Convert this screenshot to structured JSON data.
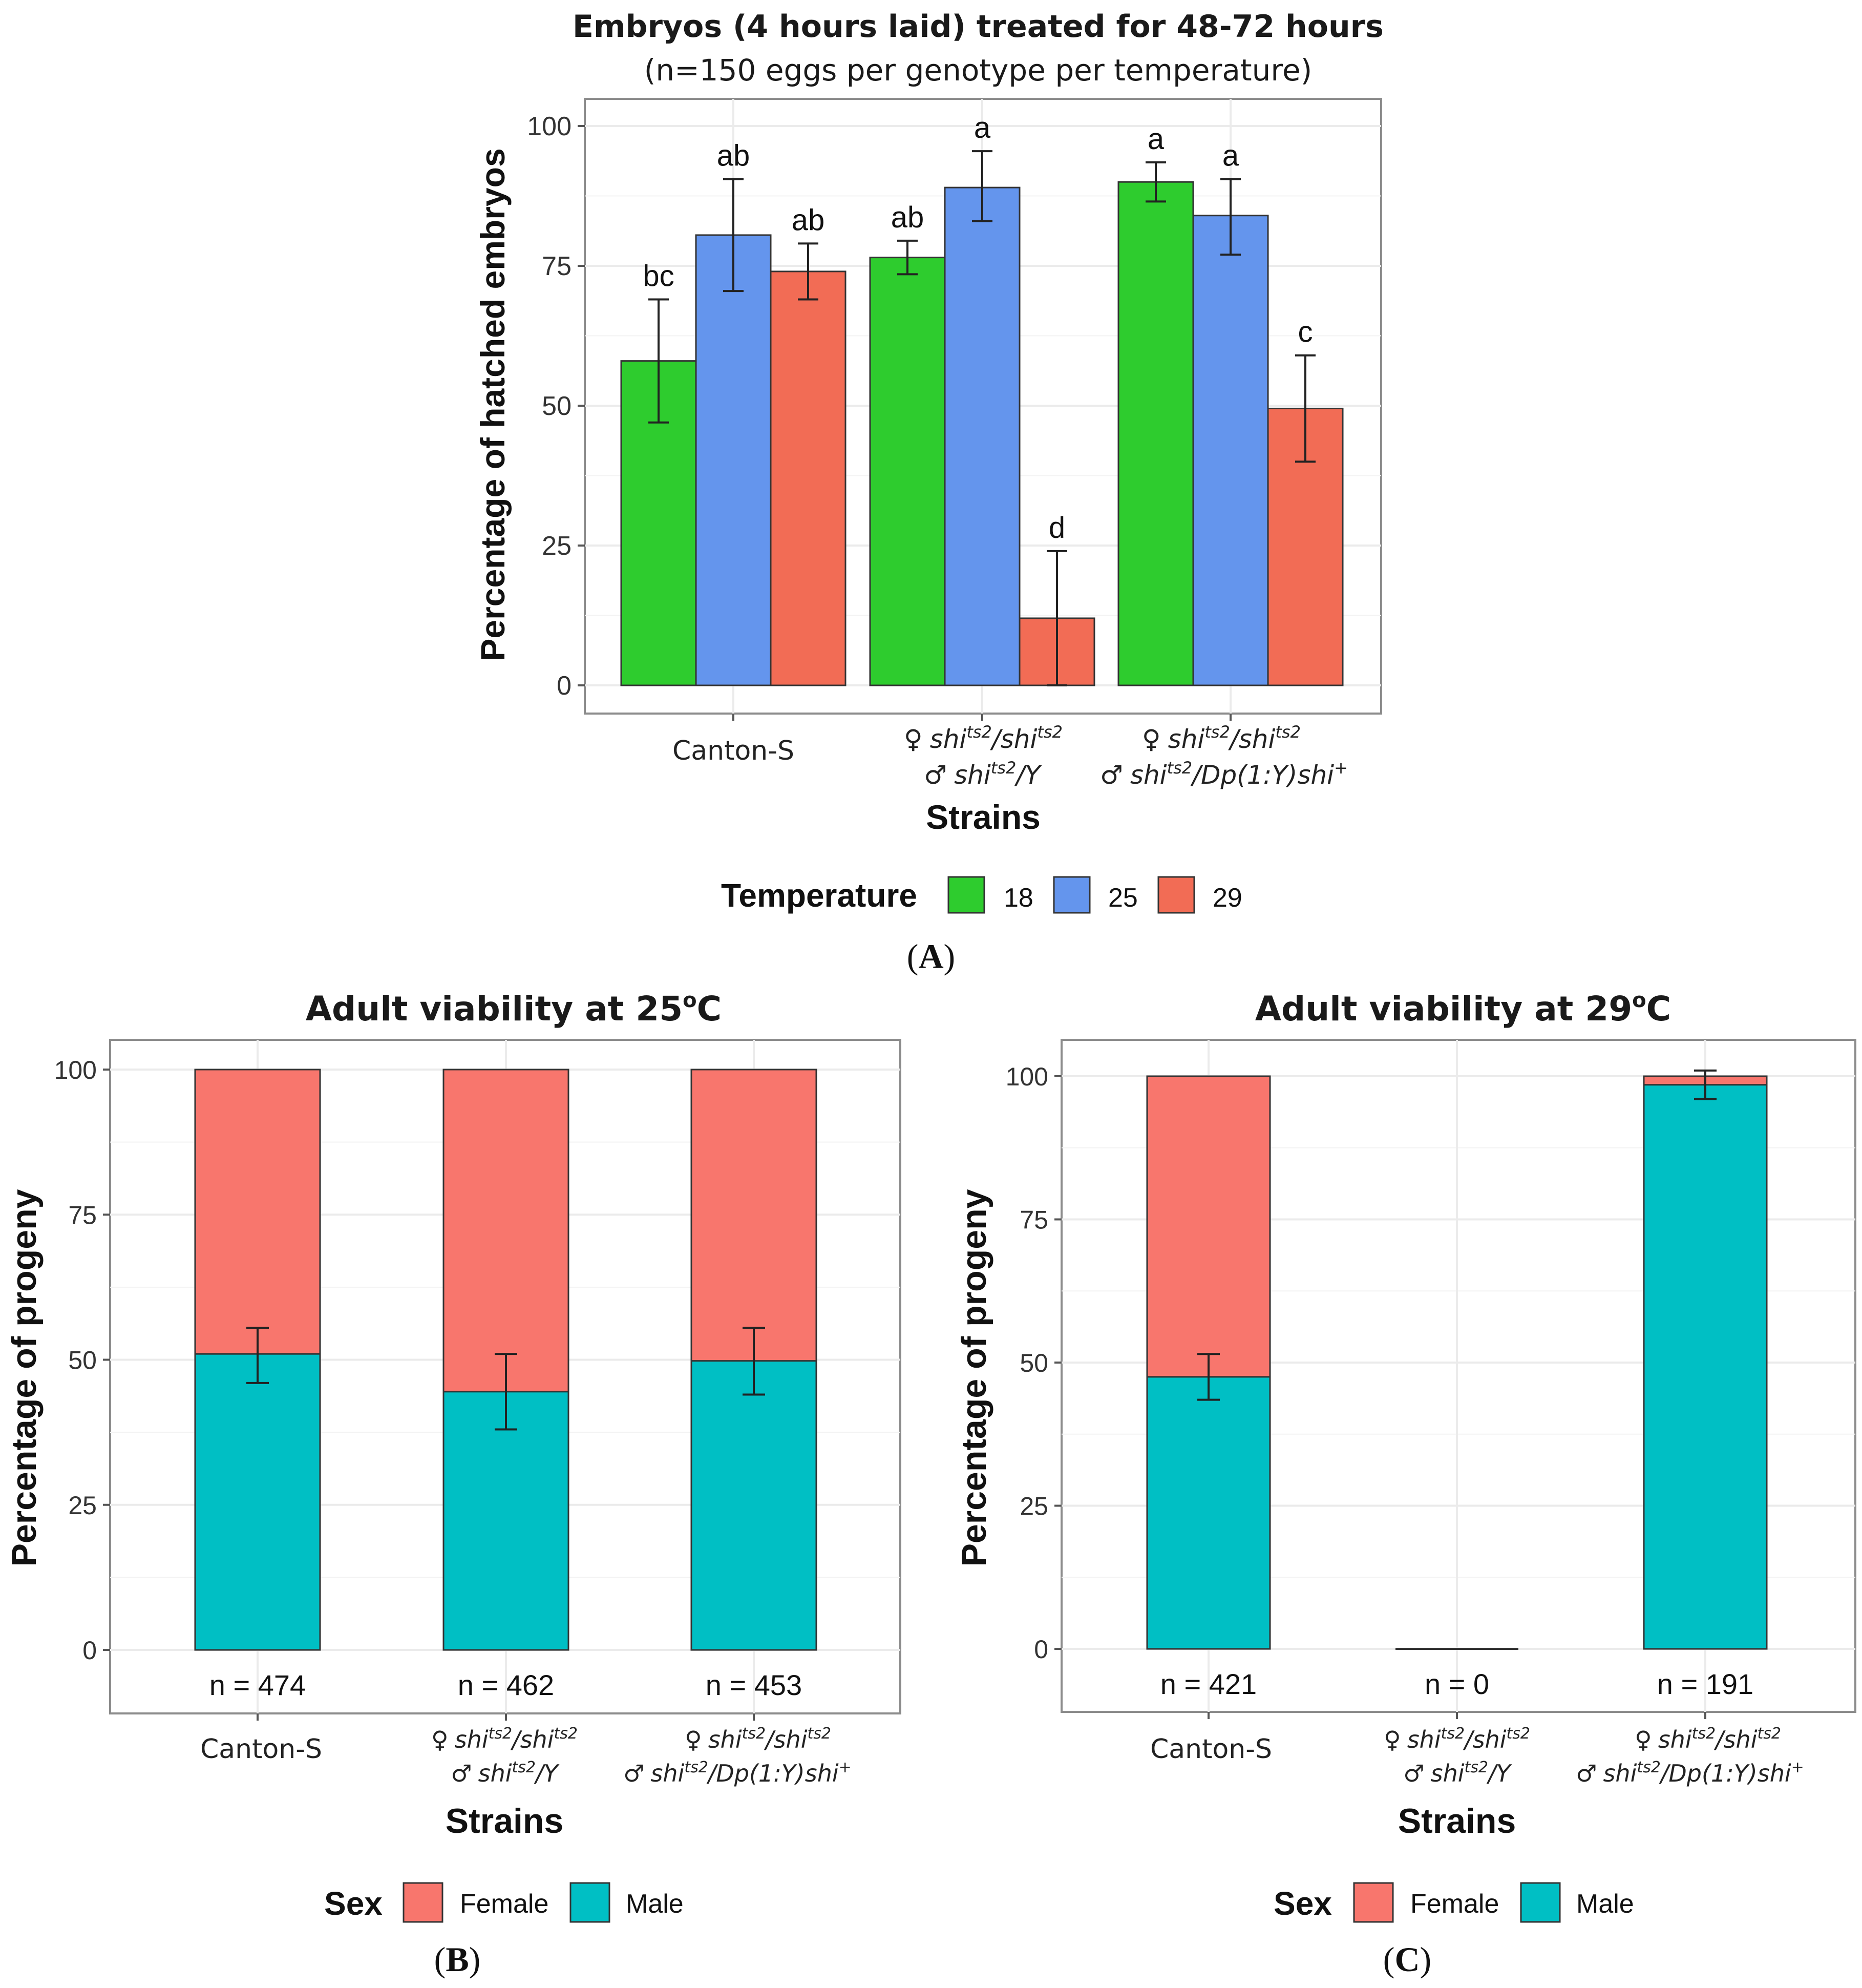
{
  "strains_label": "Strains",
  "genotypes": {
    "canton": "Canton-S",
    "female_symbol": "♀",
    "male_symbol": "♂",
    "female_genotype": "shi<sup>ts2</sup>/shi<sup>ts2</sup>",
    "female_genotype_text": "shits2/shits2",
    "male_genotype_b": "shits2/Y",
    "male_genotype_c": "shits2/Dp(1:Y)shi+"
  },
  "chart_data": [
    {
      "id": "A",
      "type": "bar",
      "panel_label": "A",
      "title": "Embryos (4 hours laid) treated for 48-72 hours",
      "subtitle": "(n=150 eggs per genotype per temperature)",
      "xlabel": "Strains",
      "ylabel": "Percentage of hatched embryos",
      "ylim": [
        0,
        105
      ],
      "yticks": [
        "0",
        "25",
        "50",
        "75",
        "100"
      ],
      "categories": [
        "Canton-S",
        "shits2/shits2 ; shits2/Y",
        "shits2/shits2 ; shits2/Dp(1:Y)shi+"
      ],
      "legend_title": "Temperature",
      "series": [
        {
          "name": "18",
          "color": "#2ecc2e",
          "values": [
            58,
            76.5,
            90
          ],
          "err_low": [
            47,
            73.5,
            86.5
          ],
          "err_high": [
            69,
            79.5,
            93.5
          ],
          "labels": [
            "bc",
            "ab",
            "a"
          ]
        },
        {
          "name": "25",
          "color": "#6495ed",
          "values": [
            80.5,
            89,
            84
          ],
          "err_low": [
            70.5,
            83,
            77
          ],
          "err_high": [
            90.5,
            95.5,
            90.5
          ],
          "labels": [
            "ab",
            "a",
            "a"
          ]
        },
        {
          "name": "29",
          "color": "#f26c55",
          "values": [
            74,
            12,
            49.5
          ],
          "err_low": [
            69,
            0,
            40
          ],
          "err_high": [
            79,
            24,
            59
          ],
          "labels": [
            "ab",
            "d",
            "c"
          ]
        }
      ]
    },
    {
      "id": "B",
      "type": "bar",
      "stacked": true,
      "panel_label": "B",
      "title": "Adult viability at 25",
      "title_suffix": "C",
      "degree": "o",
      "xlabel": "Strains",
      "ylabel": "Percentage of progeny",
      "ylim": [
        -10,
        105
      ],
      "yticks": [
        "0",
        "25",
        "50",
        "75",
        "100"
      ],
      "categories": [
        "Canton-S",
        "shits2/shits2 ; shits2/Y",
        "shits2/shits2 ; shits2/Dp(1:Y)shi+"
      ],
      "n_labels": [
        "n = 474",
        "n = 462",
        "n = 453"
      ],
      "legend_title": "Sex",
      "series": [
        {
          "name": "Male",
          "color": "#00bfc4",
          "values": [
            51,
            44.5,
            49.8
          ]
        },
        {
          "name": "Female",
          "color": "#f8766d",
          "values": [
            49,
            55.5,
            50.2
          ]
        }
      ],
      "male_err_low": [
        46,
        38,
        44
      ],
      "male_err_high": [
        55.5,
        51,
        55.5
      ]
    },
    {
      "id": "C",
      "type": "bar",
      "stacked": true,
      "panel_label": "C",
      "title": "Adult viability at 29",
      "title_suffix": "C",
      "degree": "o",
      "xlabel": "Strains",
      "ylabel": "Percentage of progeny",
      "ylim": [
        -11,
        105
      ],
      "yticks": [
        "0",
        "25",
        "50",
        "75",
        "100"
      ],
      "categories": [
        "Canton-S",
        "shits2/shits2 ; shits2/Y",
        "shits2/shits2 ; shits2/Dp(1:Y)shi+"
      ],
      "n_labels": [
        "n = 421",
        "n = 0",
        "n = 191"
      ],
      "legend_title": "Sex",
      "series": [
        {
          "name": "Male",
          "color": "#00bfc4",
          "values": [
            47.5,
            0,
            98.5
          ]
        },
        {
          "name": "Female",
          "color": "#f8766d",
          "values": [
            52.5,
            0,
            1.5
          ]
        }
      ],
      "male_err_low": [
        43.5,
        0,
        96
      ],
      "male_err_high": [
        51.5,
        0,
        101
      ]
    }
  ]
}
